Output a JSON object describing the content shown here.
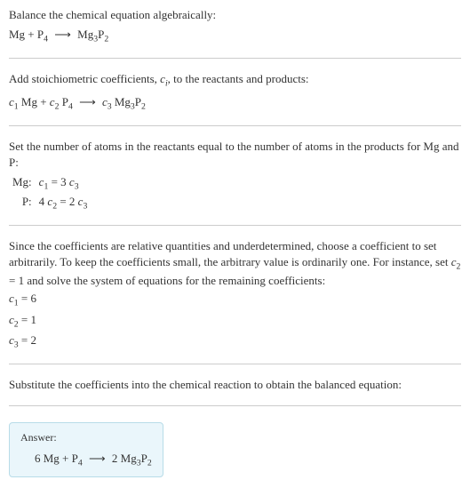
{
  "s1": {
    "title": "Balance the chemical equation algebraically:",
    "eq_html": "Mg + P<sub>4</sub> <span class=\"arrow\">⟶</span> Mg<sub>3</sub>P<sub>2</sub>"
  },
  "s2": {
    "title_html": "Add stoichiometric coefficients, <span class=\"italic\">c<sub>i</sub></span>, to the reactants and products:",
    "eq_html": "<span class=\"italic\">c</span><sub>1</sub> Mg + <span class=\"italic\">c</span><sub>2</sub> P<sub>4</sub> <span class=\"arrow\">⟶</span> <span class=\"italic\">c</span><sub>3</sub> Mg<sub>3</sub>P<sub>2</sub>"
  },
  "s3": {
    "title": "Set the number of atoms in the reactants equal to the number of atoms in the products for Mg and P:",
    "rows": [
      {
        "label": "Mg:",
        "eq_html": "<span class=\"italic\">c</span><sub>1</sub> = 3 <span class=\"italic\">c</span><sub>3</sub>"
      },
      {
        "label": "P:",
        "eq_html": "4 <span class=\"italic\">c</span><sub>2</sub> = 2 <span class=\"italic\">c</span><sub>3</sub>"
      }
    ]
  },
  "s4": {
    "title_html": "Since the coefficients are relative quantities and underdetermined, choose a coefficient to set arbitrarily. To keep the coefficients small, the arbitrary value is ordinarily one. For instance, set <span class=\"italic\">c</span><sub>2</sub> = 1 and solve the system of equations for the remaining coefficients:",
    "lines": [
      "<span class=\"italic\">c</span><sub>1</sub> = 6",
      "<span class=\"italic\">c</span><sub>2</sub> = 1",
      "<span class=\"italic\">c</span><sub>3</sub> = 2"
    ]
  },
  "s5": {
    "title": "Substitute the coefficients into the chemical reaction to obtain the balanced equation:"
  },
  "answer": {
    "label": "Answer:",
    "eq_html": "6 Mg + P<sub>4</sub> <span class=\"arrow\">⟶</span> 2 Mg<sub>3</sub>P<sub>2</sub>"
  },
  "colors": {
    "text": "#333333",
    "divider": "#cccccc",
    "answer_bg": "#eaf6fb",
    "answer_border": "#b8dce8"
  }
}
